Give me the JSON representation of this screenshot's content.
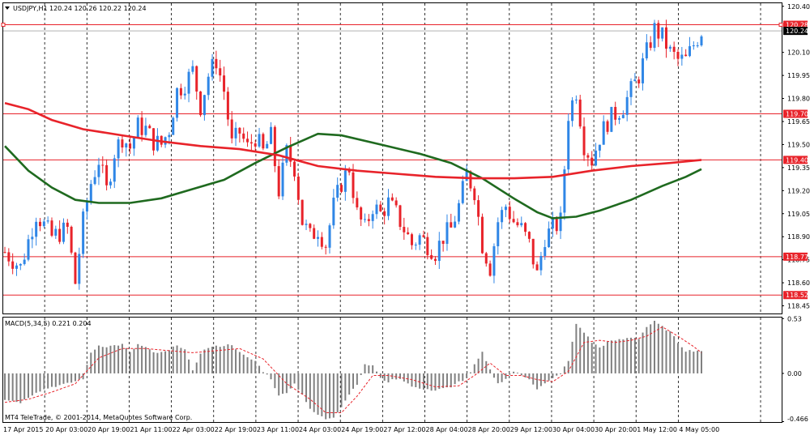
{
  "header": {
    "symbol": "USDJPY,H1",
    "ohlc": "120.24 120.26 120.22 120.24"
  },
  "indicator": {
    "label": "MACD(5,34,5) 0.221 0.204",
    "scale": [
      "0.53",
      "0.00",
      "-0.466"
    ]
  },
  "copyright": "MT4 TeleTrade, © 2001-2014, MetaQuotes Software Corp.",
  "colors": {
    "bull": "#2f86e6",
    "bear": "#e8232a",
    "ma_fast": "#e8232a",
    "ma_slow": "#1f6a1f",
    "level": "#e8232a",
    "hist": "#808080",
    "signal": "#e8232a"
  },
  "chart_data": {
    "type": "candlestick",
    "price_axis": {
      "ylim": [
        118.4,
        120.42
      ],
      "ticks": [
        "120.40",
        "120.10",
        "119.95",
        "119.80",
        "119.65",
        "119.50",
        "119.35",
        "119.20",
        "119.05",
        "118.90",
        "118.75",
        "118.60",
        "118.45"
      ]
    },
    "levels": [
      {
        "value": 120.28,
        "label": "120.28"
      },
      {
        "value": 119.7,
        "label": "119.70"
      },
      {
        "value": 119.4,
        "label": "119.40"
      },
      {
        "value": 118.77,
        "label": "118.77"
      },
      {
        "value": 118.52,
        "label": "118.52"
      }
    ],
    "current_price": {
      "value": 120.24,
      "label": "120.24"
    },
    "time_labels": [
      "17 Apr 2015",
      "20 Apr 03:00",
      "20 Apr 19:00",
      "21 Apr 11:00",
      "22 Apr 03:00",
      "22 Apr 19:00",
      "23 Apr 11:00",
      "24 Apr 03:00",
      "24 Apr 19:00",
      "27 Apr 12:00",
      "28 Apr 04:00",
      "28 Apr 20:00",
      "29 Apr 12:00",
      "30 Apr 04:00",
      "30 Apr 20:00",
      "1 May 12:00",
      "4 May 05:00"
    ],
    "close_path": [
      [
        0,
        118.8
      ],
      [
        4,
        118.7
      ],
      [
        8,
        119.05
      ],
      [
        12,
        118.9
      ],
      [
        16,
        118.95
      ],
      [
        18,
        118.6
      ],
      [
        20,
        119.0
      ],
      [
        22,
        119.25
      ],
      [
        24,
        119.4
      ],
      [
        26,
        119.2
      ],
      [
        28,
        119.45
      ],
      [
        30,
        119.55
      ],
      [
        32,
        119.48
      ],
      [
        34,
        119.62
      ],
      [
        36,
        119.6
      ],
      [
        38,
        119.52
      ],
      [
        40,
        119.5
      ],
      [
        42,
        119.6
      ],
      [
        44,
        119.85
      ],
      [
        46,
        119.9
      ],
      [
        48,
        119.98
      ],
      [
        50,
        119.75
      ],
      [
        52,
        119.95
      ],
      [
        54,
        120.05
      ],
      [
        56,
        119.85
      ],
      [
        58,
        119.5
      ],
      [
        60,
        119.58
      ],
      [
        62,
        119.48
      ],
      [
        64,
        119.55
      ],
      [
        66,
        119.45
      ],
      [
        68,
        119.55
      ],
      [
        70,
        119.2
      ],
      [
        72,
        119.45
      ],
      [
        74,
        119.35
      ],
      [
        76,
        119.0
      ],
      [
        78,
        118.9
      ],
      [
        80,
        118.95
      ],
      [
        82,
        118.85
      ],
      [
        84,
        119.1
      ],
      [
        86,
        119.25
      ],
      [
        88,
        119.35
      ],
      [
        90,
        119.05
      ],
      [
        92,
        118.95
      ],
      [
        94,
        119.1
      ],
      [
        96,
        119.05
      ],
      [
        98,
        119.12
      ],
      [
        100,
        119.05
      ],
      [
        102,
        118.95
      ],
      [
        104,
        118.85
      ],
      [
        106,
        118.9
      ],
      [
        108,
        118.85
      ],
      [
        110,
        118.8
      ],
      [
        112,
        118.9
      ],
      [
        114,
        118.95
      ],
      [
        116,
        119.1
      ],
      [
        118,
        119.3
      ],
      [
        120,
        119.2
      ],
      [
        122,
        118.85
      ],
      [
        124,
        118.7
      ],
      [
        126,
        119.0
      ],
      [
        128,
        119.1
      ],
      [
        130,
        119.0
      ],
      [
        132,
        118.95
      ],
      [
        134,
        118.85
      ],
      [
        136,
        118.65
      ],
      [
        138,
        118.9
      ],
      [
        140,
        118.95
      ],
      [
        142,
        119.0
      ],
      [
        144,
        119.7
      ],
      [
        146,
        119.85
      ],
      [
        148,
        119.5
      ],
      [
        150,
        119.4
      ],
      [
        152,
        119.55
      ],
      [
        154,
        119.65
      ],
      [
        156,
        119.7
      ],
      [
        158,
        119.75
      ],
      [
        160,
        119.85
      ],
      [
        162,
        119.95
      ],
      [
        164,
        120.1
      ],
      [
        166,
        120.25
      ],
      [
        168,
        120.2
      ],
      [
        170,
        120.1
      ],
      [
        172,
        120.05
      ],
      [
        174,
        120.05
      ],
      [
        176,
        120.15
      ],
      [
        178,
        120.24
      ]
    ],
    "ma_fast": [
      [
        0,
        119.77
      ],
      [
        6,
        119.73
      ],
      [
        12,
        119.66
      ],
      [
        20,
        119.6
      ],
      [
        30,
        119.56
      ],
      [
        40,
        119.52
      ],
      [
        50,
        119.49
      ],
      [
        60,
        119.47
      ],
      [
        70,
        119.43
      ],
      [
        80,
        119.36
      ],
      [
        90,
        119.33
      ],
      [
        100,
        119.31
      ],
      [
        110,
        119.29
      ],
      [
        120,
        119.28
      ],
      [
        130,
        119.28
      ],
      [
        140,
        119.29
      ],
      [
        150,
        119.33
      ],
      [
        160,
        119.36
      ],
      [
        170,
        119.38
      ],
      [
        178,
        119.4
      ]
    ],
    "ma_slow": [
      [
        0,
        119.49
      ],
      [
        6,
        119.33
      ],
      [
        12,
        119.22
      ],
      [
        18,
        119.14
      ],
      [
        24,
        119.12
      ],
      [
        32,
        119.12
      ],
      [
        40,
        119.15
      ],
      [
        48,
        119.21
      ],
      [
        56,
        119.27
      ],
      [
        64,
        119.38
      ],
      [
        72,
        119.48
      ],
      [
        80,
        119.57
      ],
      [
        86,
        119.56
      ],
      [
        96,
        119.5
      ],
      [
        106,
        119.44
      ],
      [
        114,
        119.38
      ],
      [
        122,
        119.28
      ],
      [
        130,
        119.15
      ],
      [
        136,
        119.06
      ],
      [
        140,
        119.02
      ],
      [
        146,
        119.03
      ],
      [
        152,
        119.07
      ],
      [
        160,
        119.14
      ],
      [
        168,
        119.23
      ],
      [
        174,
        119.29
      ],
      [
        178,
        119.34
      ]
    ],
    "macd_axis": {
      "ylim": [
        -0.47,
        0.54
      ]
    },
    "macd_path": [
      [
        0,
        -0.25
      ],
      [
        4,
        -0.28
      ],
      [
        8,
        -0.18
      ],
      [
        12,
        -0.13
      ],
      [
        16,
        -0.1
      ],
      [
        20,
        -0.05
      ],
      [
        22,
        0.2
      ],
      [
        24,
        0.27
      ],
      [
        26,
        0.26
      ],
      [
        28,
        0.27
      ],
      [
        30,
        0.28
      ],
      [
        32,
        0.2
      ],
      [
        34,
        0.28
      ],
      [
        36,
        0.25
      ],
      [
        38,
        0.2
      ],
      [
        40,
        0.2
      ],
      [
        42,
        0.22
      ],
      [
        44,
        0.28
      ],
      [
        46,
        0.23
      ],
      [
        48,
        0.02
      ],
      [
        50,
        0.2
      ],
      [
        52,
        0.25
      ],
      [
        54,
        0.26
      ],
      [
        56,
        0.27
      ],
      [
        58,
        0.28
      ],
      [
        60,
        0.2
      ],
      [
        62,
        0.15
      ],
      [
        64,
        0.12
      ],
      [
        66,
        0.02
      ],
      [
        68,
        -0.05
      ],
      [
        70,
        -0.22
      ],
      [
        72,
        -0.18
      ],
      [
        74,
        -0.1
      ],
      [
        76,
        -0.2
      ],
      [
        78,
        -0.35
      ],
      [
        80,
        -0.4
      ],
      [
        82,
        -0.44
      ],
      [
        84,
        -0.42
      ],
      [
        86,
        -0.32
      ],
      [
        88,
        -0.2
      ],
      [
        90,
        -0.1
      ],
      [
        92,
        0.08
      ],
      [
        94,
        0.08
      ],
      [
        96,
        -0.05
      ],
      [
        98,
        -0.08
      ],
      [
        100,
        -0.05
      ],
      [
        102,
        -0.07
      ],
      [
        104,
        -0.12
      ],
      [
        106,
        -0.15
      ],
      [
        108,
        -0.16
      ],
      [
        110,
        -0.16
      ],
      [
        112,
        -0.14
      ],
      [
        114,
        -0.14
      ],
      [
        116,
        -0.08
      ],
      [
        118,
        -0.05
      ],
      [
        120,
        0.08
      ],
      [
        122,
        0.2
      ],
      [
        124,
        0.03
      ],
      [
        126,
        -0.1
      ],
      [
        128,
        -0.05
      ],
      [
        130,
        0.02
      ],
      [
        132,
        -0.02
      ],
      [
        134,
        -0.05
      ],
      [
        136,
        -0.15
      ],
      [
        138,
        -0.1
      ],
      [
        140,
        -0.05
      ],
      [
        142,
        0.0
      ],
      [
        144,
        0.12
      ],
      [
        146,
        0.48
      ],
      [
        148,
        0.4
      ],
      [
        150,
        0.3
      ],
      [
        152,
        0.25
      ],
      [
        154,
        0.3
      ],
      [
        156,
        0.32
      ],
      [
        158,
        0.33
      ],
      [
        160,
        0.35
      ],
      [
        162,
        0.34
      ],
      [
        164,
        0.45
      ],
      [
        166,
        0.5
      ],
      [
        168,
        0.45
      ],
      [
        170,
        0.4
      ],
      [
        172,
        0.3
      ],
      [
        174,
        0.22
      ],
      [
        176,
        0.22
      ],
      [
        178,
        0.22
      ]
    ],
    "signal_path": [
      [
        0,
        -0.28
      ],
      [
        6,
        -0.25
      ],
      [
        12,
        -0.18
      ],
      [
        18,
        -0.1
      ],
      [
        24,
        0.15
      ],
      [
        30,
        0.24
      ],
      [
        36,
        0.24
      ],
      [
        42,
        0.22
      ],
      [
        48,
        0.2
      ],
      [
        54,
        0.22
      ],
      [
        60,
        0.24
      ],
      [
        66,
        0.14
      ],
      [
        72,
        -0.1
      ],
      [
        78,
        -0.25
      ],
      [
        82,
        -0.38
      ],
      [
        86,
        -0.38
      ],
      [
        90,
        -0.22
      ],
      [
        94,
        -0.02
      ],
      [
        98,
        -0.02
      ],
      [
        104,
        -0.06
      ],
      [
        110,
        -0.13
      ],
      [
        116,
        -0.12
      ],
      [
        120,
        -0.02
      ],
      [
        124,
        0.1
      ],
      [
        128,
        -0.02
      ],
      [
        132,
        -0.02
      ],
      [
        136,
        -0.06
      ],
      [
        140,
        -0.08
      ],
      [
        144,
        0.02
      ],
      [
        148,
        0.3
      ],
      [
        152,
        0.32
      ],
      [
        156,
        0.3
      ],
      [
        160,
        0.32
      ],
      [
        164,
        0.36
      ],
      [
        168,
        0.45
      ],
      [
        172,
        0.36
      ],
      [
        176,
        0.26
      ],
      [
        178,
        0.2
      ]
    ]
  }
}
